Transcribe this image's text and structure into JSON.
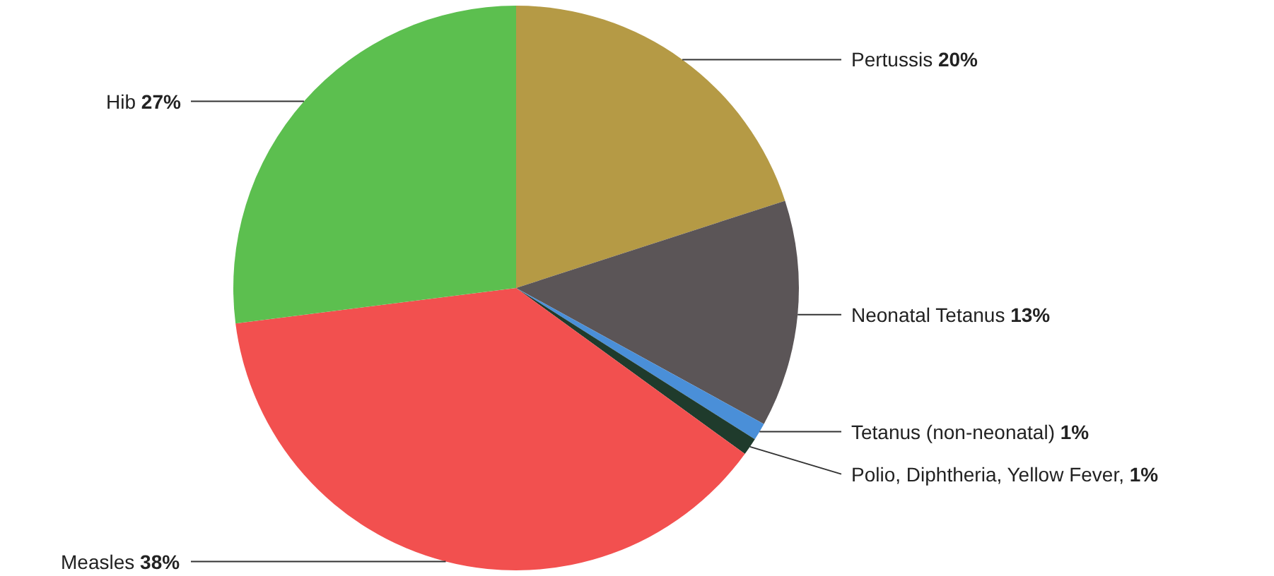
{
  "chart_data": {
    "type": "pie",
    "categories": [
      "Pertussis",
      "Neonatal Tetanus",
      "Tetanus (non-neonatal)",
      "Polio, Diphtheria, Yellow Fever",
      "Measles",
      "Hib"
    ],
    "values": [
      20,
      13,
      1,
      1,
      38,
      27
    ],
    "colors": [
      "#b59a45",
      "#5b5557",
      "#4a8fd8",
      "#1f3b2c",
      "#f2504f",
      "#5cbf4f"
    ],
    "value_labels": [
      "20%",
      "13%",
      "1%",
      ", 1%",
      "38%",
      "27%"
    ],
    "legend": false
  }
}
